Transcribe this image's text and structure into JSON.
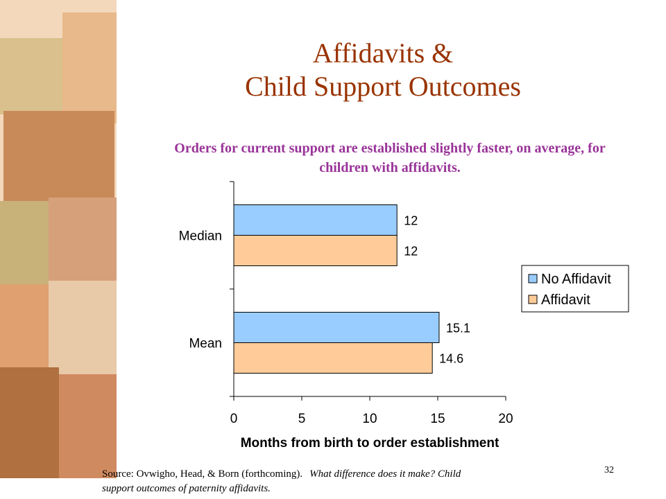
{
  "chart_data": {
    "type": "bar",
    "title": [
      "Affidavits &",
      "Child Support Outcomes"
    ],
    "subtitle": [
      "Orders for current support are established slightly faster, on average, for",
      "children with affidavits."
    ],
    "categories": [
      "Median",
      "Mean"
    ],
    "series": [
      {
        "name": "No Affidavit",
        "color": "#99ccff",
        "values": [
          12,
          15.1
        ]
      },
      {
        "name": "Affidavit",
        "color": "#ffcc99",
        "values": [
          12,
          14.6
        ]
      }
    ],
    "x_label": "Months from birth to order establishment",
    "xlim": [
      0,
      20
    ],
    "xticks": [
      0,
      5,
      10,
      15,
      20
    ],
    "legend": "right"
  },
  "source": {
    "text": "Source: Ovwigho, Head, & Born (forthcoming).",
    "italic": [
      "What difference does it make?  Child",
      "support outcomes of paternity affidavits."
    ]
  },
  "page_number": "32"
}
